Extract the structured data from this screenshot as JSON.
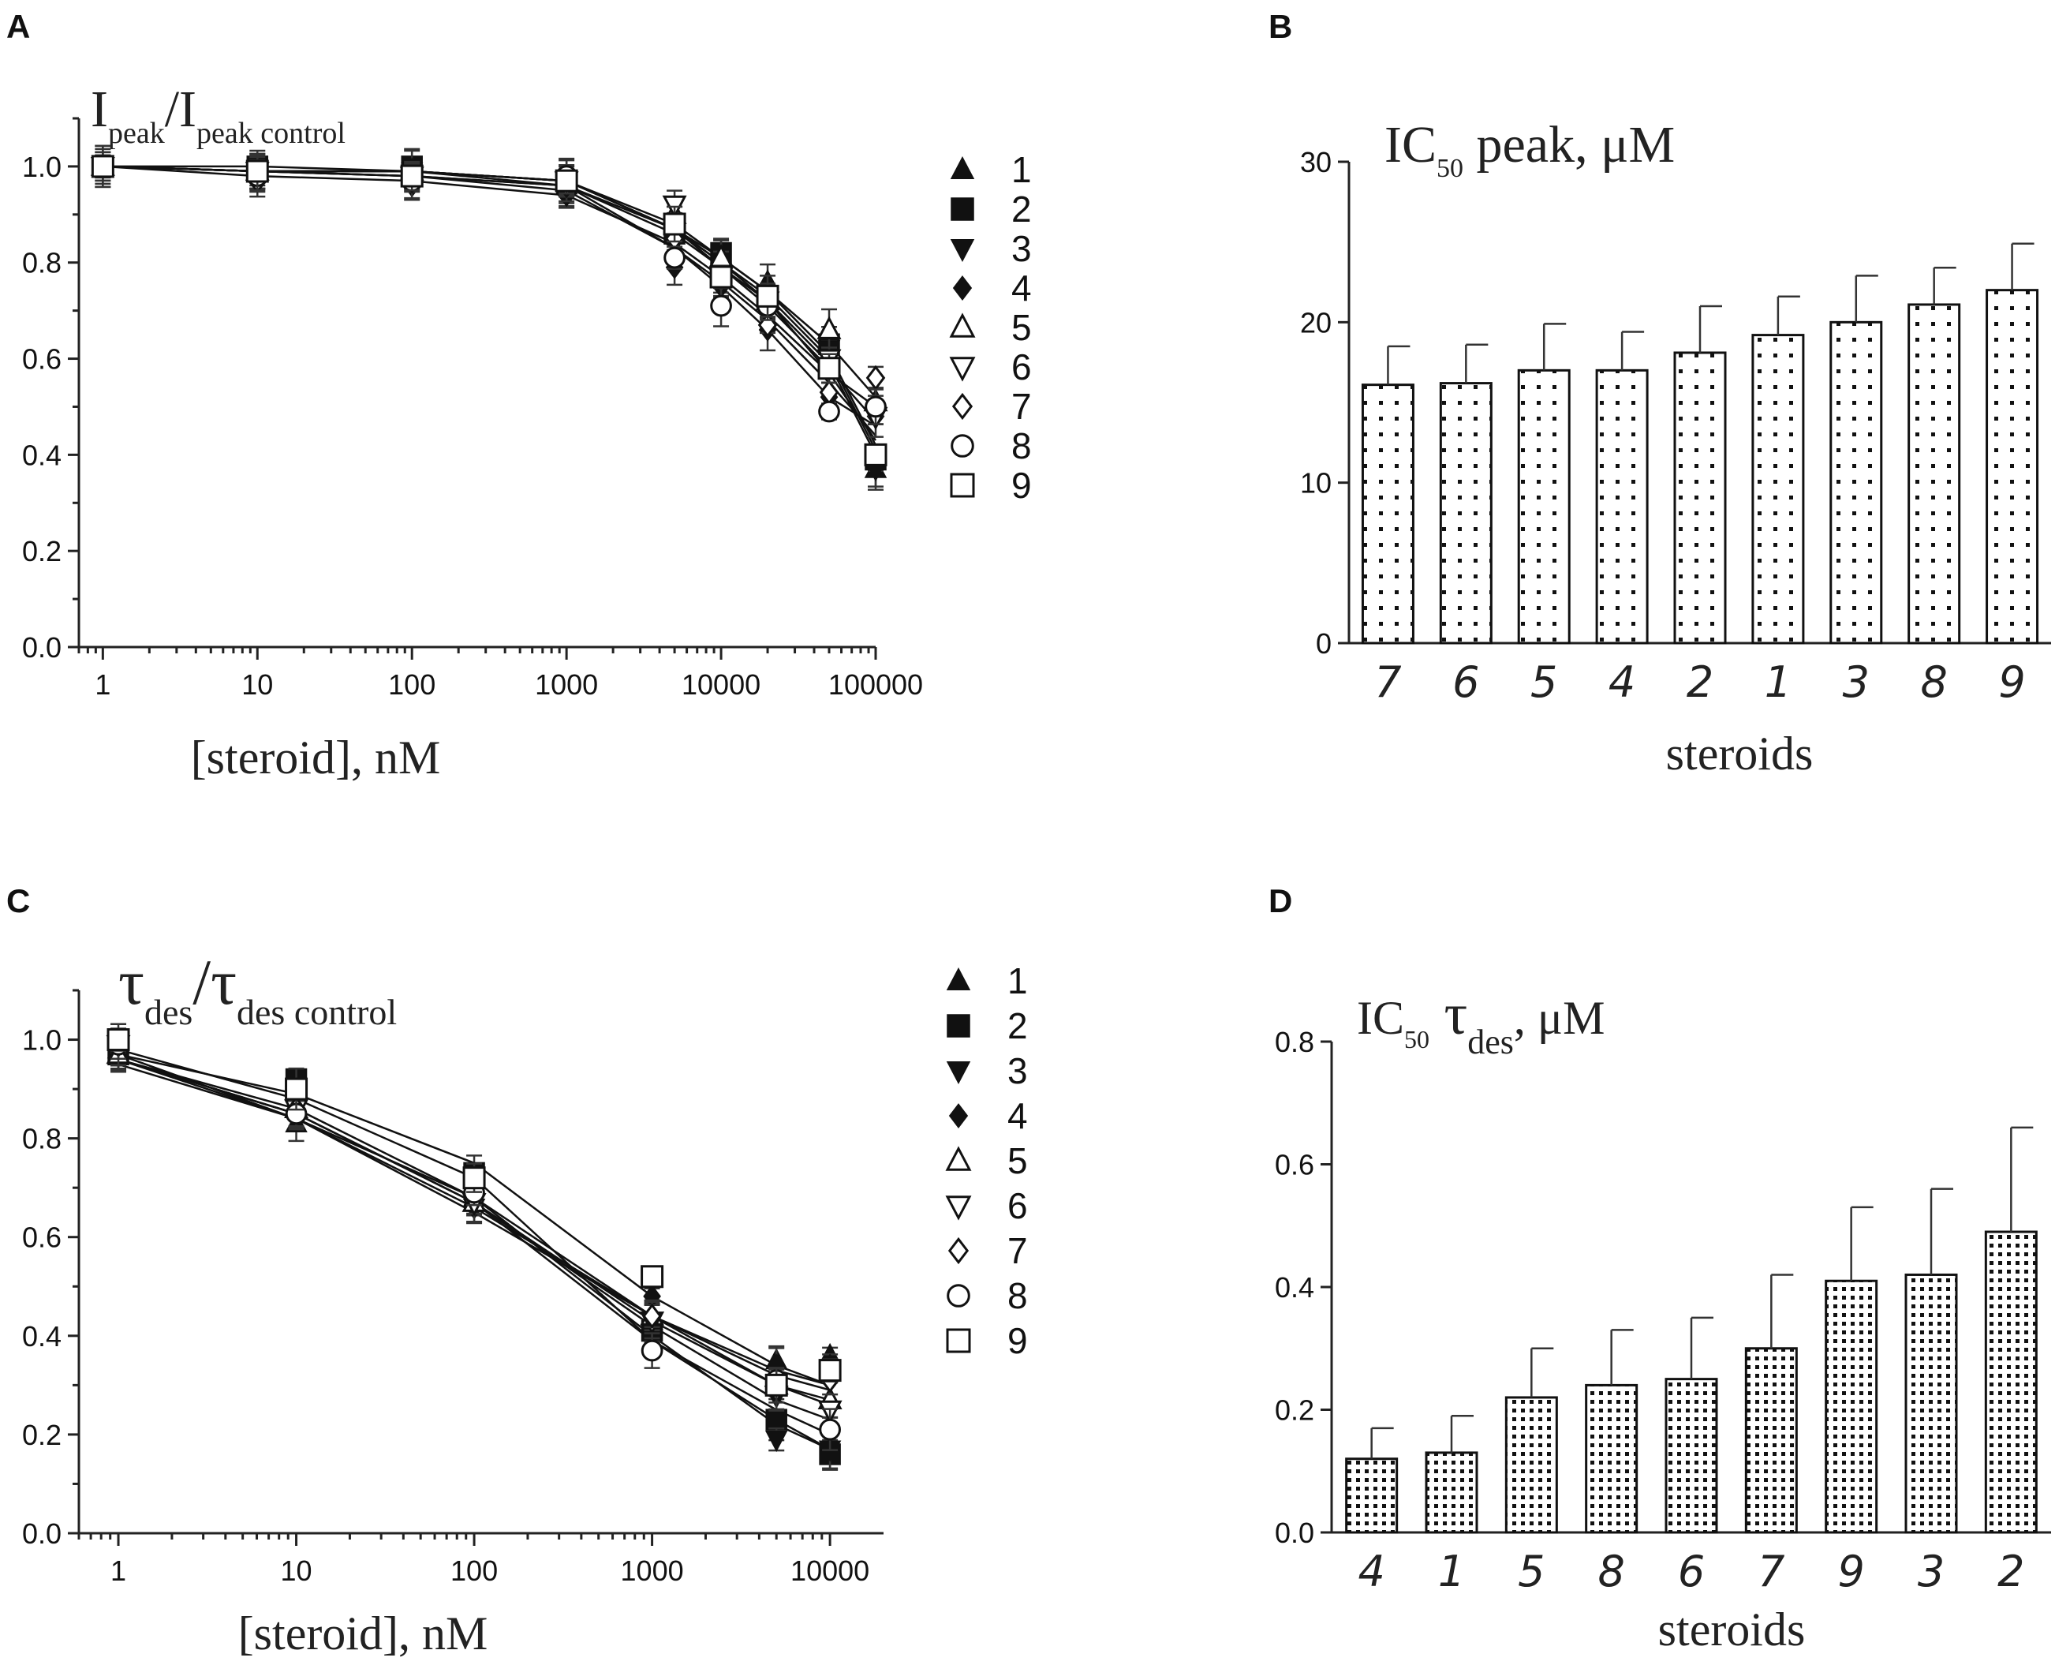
{
  "chart_data": [
    {
      "id": "A",
      "type": "scatter",
      "panel_letter": "A",
      "title_main": "I",
      "title_sub": "peak",
      "title_sep": "/I",
      "title_sub2": "peak control",
      "xlabel": "[steroid], nM",
      "xscale": "log",
      "xlim": [
        0.7,
        100000
      ],
      "ylim": [
        0,
        1.1
      ],
      "x_ticks": [
        1,
        10,
        100,
        1000,
        10000,
        100000
      ],
      "x_tick_labels": [
        "1",
        "10",
        "100",
        "1000",
        "10000",
        "100000"
      ],
      "y_ticks": [
        0,
        0.2,
        0.4,
        0.6,
        0.8,
        1.0
      ],
      "y_tick_labels": [
        "0.0",
        "0.2",
        "0.4",
        "0.6",
        "0.8",
        "1.0"
      ],
      "x": [
        1,
        10,
        100,
        1000,
        5000,
        10000,
        20000,
        50000,
        100000
      ],
      "series": [
        {
          "name": "1",
          "marker": "triangle-up",
          "filled": true,
          "values": [
            1.0,
            0.99,
            0.99,
            0.96,
            0.87,
            0.8,
            0.76,
            0.61,
            0.37
          ],
          "curve": [
            1.0,
            0.99,
            0.99,
            0.97,
            0.87,
            0.8,
            0.73,
            0.6,
            0.41
          ]
        },
        {
          "name": "2",
          "marker": "square",
          "filled": true,
          "values": [
            1.0,
            1.0,
            1.0,
            0.97,
            0.86,
            0.82,
            0.73,
            0.63,
            0.39
          ],
          "curve": [
            1.0,
            1.0,
            0.99,
            0.97,
            0.87,
            0.81,
            0.74,
            0.61,
            0.42
          ]
        },
        {
          "name": "3",
          "marker": "triangle-down",
          "filled": true,
          "values": [
            1.0,
            0.99,
            0.99,
            0.95,
            0.84,
            0.78,
            0.7,
            0.62,
            0.37
          ],
          "curve": [
            1.0,
            0.99,
            0.99,
            0.96,
            0.86,
            0.79,
            0.72,
            0.59,
            0.4
          ]
        },
        {
          "name": "4",
          "marker": "diamond",
          "filled": true,
          "values": [
            1.0,
            0.98,
            0.96,
            0.94,
            0.79,
            0.75,
            0.66,
            0.52,
            0.48
          ],
          "curve": [
            1.0,
            0.99,
            0.98,
            0.95,
            0.83,
            0.76,
            0.68,
            0.55,
            0.44
          ]
        },
        {
          "name": "5",
          "marker": "triangle-up",
          "filled": false,
          "values": [
            1.0,
            0.99,
            0.99,
            0.97,
            0.9,
            0.81,
            0.72,
            0.66,
            0.51
          ],
          "curve": [
            1.0,
            0.99,
            0.99,
            0.97,
            0.88,
            0.81,
            0.74,
            0.63,
            0.52
          ]
        },
        {
          "name": "6",
          "marker": "triangle-down",
          "filled": false,
          "values": [
            1.0,
            0.99,
            0.98,
            0.97,
            0.92,
            0.77,
            0.72,
            0.6,
            0.48
          ],
          "curve": [
            1.0,
            0.99,
            0.98,
            0.96,
            0.87,
            0.79,
            0.71,
            0.58,
            0.47
          ]
        },
        {
          "name": "7",
          "marker": "diamond",
          "filled": false,
          "values": [
            1.0,
            0.97,
            0.97,
            0.96,
            0.85,
            0.76,
            0.67,
            0.53,
            0.56
          ],
          "curve": [
            1.0,
            0.98,
            0.97,
            0.94,
            0.84,
            0.77,
            0.69,
            0.57,
            0.5
          ]
        },
        {
          "name": "8",
          "marker": "circle",
          "filled": false,
          "values": [
            1.0,
            0.98,
            0.97,
            0.98,
            0.81,
            0.71,
            0.71,
            0.49,
            0.5
          ],
          "curve": [
            1.0,
            0.99,
            0.98,
            0.96,
            0.83,
            0.75,
            0.66,
            0.52,
            0.46
          ]
        },
        {
          "name": "9",
          "marker": "square",
          "filled": false,
          "values": [
            1.0,
            0.99,
            0.98,
            0.97,
            0.88,
            0.77,
            0.73,
            0.58,
            0.4
          ],
          "curve": [
            1.0,
            0.99,
            0.99,
            0.97,
            0.87,
            0.8,
            0.72,
            0.57,
            0.43
          ]
        }
      ]
    },
    {
      "id": "B",
      "type": "bar",
      "panel_letter": "B",
      "title_main": "IC",
      "title_sub": "50",
      "title_rest": " peak, μM",
      "xlabel": "steroids",
      "ylim": [
        0,
        30
      ],
      "y_ticks": [
        0,
        10,
        20,
        30
      ],
      "y_tick_labels": [
        "0",
        "10",
        "20",
        "30"
      ],
      "categories": [
        "7",
        "6",
        "5",
        "4",
        "2",
        "1",
        "3",
        "8",
        "9"
      ],
      "values": [
        16.1,
        16.2,
        17.0,
        17.0,
        18.1,
        19.2,
        20.0,
        21.1,
        22.0
      ],
      "errors": [
        2.4,
        2.4,
        2.9,
        2.4,
        2.9,
        2.4,
        2.9,
        2.3,
        2.9
      ]
    },
    {
      "id": "C",
      "type": "scatter",
      "panel_letter": "C",
      "title_main": "τ",
      "title_sub": "des",
      "title_sep": "/τ",
      "title_sub2": "des control",
      "xlabel": "[steroid], nM",
      "xscale": "log",
      "xlim": [
        0.6,
        20000
      ],
      "ylim": [
        0,
        1.1
      ],
      "x_ticks": [
        1,
        10,
        100,
        1000,
        10000
      ],
      "x_tick_labels": [
        "1",
        "10",
        "100",
        "1000",
        "10000"
      ],
      "y_ticks": [
        0,
        0.2,
        0.4,
        0.6,
        0.8,
        1.0
      ],
      "y_tick_labels": [
        "0.0",
        "0.2",
        "0.4",
        "0.6",
        "0.8",
        "1.0"
      ],
      "x": [
        1,
        10,
        100,
        1000,
        5000,
        10000
      ],
      "series": [
        {
          "name": "1",
          "marker": "triangle-up",
          "filled": true,
          "values": [
            0.98,
            0.83,
            0.68,
            0.43,
            0.35,
            0.36
          ],
          "curve": [
            0.97,
            0.84,
            0.66,
            0.44,
            0.33,
            0.3
          ]
        },
        {
          "name": "2",
          "marker": "square",
          "filled": true,
          "values": [
            0.97,
            0.92,
            0.73,
            0.41,
            0.23,
            0.16
          ],
          "curve": [
            0.98,
            0.88,
            0.72,
            0.39,
            0.23,
            0.17
          ]
        },
        {
          "name": "3",
          "marker": "triangle-down",
          "filled": true,
          "values": [
            0.98,
            0.87,
            0.66,
            0.43,
            0.19,
            0.17
          ],
          "curve": [
            0.96,
            0.86,
            0.68,
            0.4,
            0.22,
            0.17
          ]
        },
        {
          "name": "4",
          "marker": "diamond",
          "filled": true,
          "values": [
            0.97,
            0.86,
            0.66,
            0.48,
            0.34,
            0.34
          ],
          "curve": [
            0.96,
            0.84,
            0.65,
            0.44,
            0.32,
            0.29
          ]
        },
        {
          "name": "5",
          "marker": "triangle-up",
          "filled": false,
          "values": [
            0.97,
            0.86,
            0.67,
            0.44,
            0.3,
            0.27
          ],
          "curve": [
            0.96,
            0.85,
            0.67,
            0.43,
            0.3,
            0.26
          ]
        },
        {
          "name": "6",
          "marker": "triangle-down",
          "filled": false,
          "values": [
            0.99,
            0.86,
            0.67,
            0.43,
            0.28,
            0.25
          ],
          "curve": [
            0.96,
            0.85,
            0.67,
            0.42,
            0.27,
            0.23
          ]
        },
        {
          "name": "7",
          "marker": "diamond",
          "filled": false,
          "values": [
            0.99,
            0.86,
            0.7,
            0.44,
            0.29,
            0.31
          ],
          "curve": [
            0.95,
            0.84,
            0.68,
            0.44,
            0.3,
            0.27
          ]
        },
        {
          "name": "8",
          "marker": "circle",
          "filled": false,
          "values": [
            0.99,
            0.85,
            0.69,
            0.37,
            0.31,
            0.21
          ],
          "curve": [
            0.96,
            0.85,
            0.67,
            0.39,
            0.25,
            0.2
          ]
        },
        {
          "name": "9",
          "marker": "square",
          "filled": false,
          "values": [
            1.0,
            0.9,
            0.72,
            0.52,
            0.3,
            0.33
          ],
          "curve": [
            0.97,
            0.89,
            0.75,
            0.48,
            0.34,
            0.3
          ]
        }
      ]
    },
    {
      "id": "D",
      "type": "bar",
      "panel_letter": "D",
      "title_main": "IC",
      "title_sub": "50",
      "title_tau": " τ",
      "title_tau_sub": "des",
      "title_rest": ", μM",
      "xlabel": "steroids",
      "ylim": [
        0,
        0.8
      ],
      "y_ticks": [
        0,
        0.2,
        0.4,
        0.6,
        0.8
      ],
      "y_tick_labels": [
        "0.0",
        "0.2",
        "0.4",
        "0.6",
        "0.8"
      ],
      "categories": [
        "4",
        "1",
        "5",
        "8",
        "6",
        "7",
        "9",
        "3",
        "2"
      ],
      "values": [
        0.12,
        0.13,
        0.22,
        0.24,
        0.25,
        0.3,
        0.41,
        0.42,
        0.49
      ],
      "errors": [
        0.05,
        0.06,
        0.08,
        0.09,
        0.1,
        0.12,
        0.12,
        0.14,
        0.17
      ]
    }
  ]
}
